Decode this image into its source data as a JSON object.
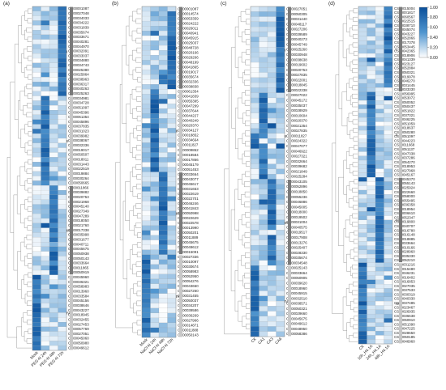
{
  "panels": [
    {
      "letter": "(a)",
      "columns": [
        "Mock",
        "PEG-N 24h",
        "PEG-N 48h",
        "PEG-N 72h"
      ],
      "group_labels": [
        "I",
        "II",
        "III",
        "IV"
      ],
      "genes": [
        "CS00001087",
        "CS00027048",
        "CS00034033",
        "CS00034222",
        "CS00031839",
        "CS00035674",
        "CS00033671",
        "CS00040281",
        "CS00044970",
        "CS00032091",
        "CS00033037",
        "CS00034880",
        "CS00034743",
        "CS00025380",
        "CS00025864",
        "CS00038963",
        "CS00036317",
        "CS00040263",
        "CS00025263",
        "CS00034981",
        "CS00034728",
        "CS00051097",
        "CS00045396",
        "CS00061354",
        "CS00045896",
        "CS00037835",
        "CS00031023",
        "CS00039982",
        "CS00038067",
        "CS00032336",
        "CS00019017",
        "CS00050507",
        "CS00018011",
        "CS00031443",
        "CS00022519",
        "CS00019884",
        "CS00030264",
        "CS00050665",
        "CS00011866",
        "CS00039882",
        "CS00020753",
        "CS00021968",
        "CS00045140",
        "CS00027349",
        "CS00047289",
        "CS00018050",
        "CS00021760",
        "CS00017338",
        "CS00035998",
        "CS00031677",
        "CS00040711",
        "CS00045675",
        "CS00050938",
        "CS00050143",
        "CS00033664",
        "CS00011865",
        "CS00050919",
        "CS00045960",
        "CS00036321",
        "CS00058983",
        "CS00013960",
        "CS00033584",
        "CS00045156",
        "CS00038646",
        "CS00043227",
        "CS00018945",
        "CS00032455",
        "CS00027453",
        "CS00057769",
        "CS00027051",
        "CS00045060",
        "CS00050980",
        "CS00049612"
      ]
    },
    {
      "letter": "(b)",
      "columns": [
        "Mock",
        "NaCl-N 24h",
        "NaCl-N 48h",
        "NaCl-N 72h"
      ],
      "group_labels": [
        "I",
        "II",
        "III",
        "IV"
      ],
      "genes": [
        "CS00001087",
        "CS00014574",
        "CS00053359",
        "CS00024222",
        "CS00026011",
        "CS00040941",
        "CS00045915",
        "CS00025037",
        "CS00048728",
        "CS00020166",
        "CS00029266",
        "CS00048199",
        "CS00041865",
        "CS00019017",
        "CS00035674",
        "CS00032336",
        "CS00038838",
        "CS00061354",
        "CS00041839",
        "CS00055395",
        "CS00047299",
        "CS00037644",
        "CS00044227",
        "CS00040249",
        "CS00020370",
        "CS00034127",
        "CS00018852",
        "CS00034664",
        "CS00011827",
        "CS00009862",
        "CS00018584",
        "CS00017866",
        "CS00045179",
        "CS00051453",
        "CS00033664",
        "CS00043077",
        "CS00045617",
        "CS00031653",
        "CS00022619",
        "CS00022701",
        "CS00046246",
        "CS00041843",
        "CS00050998",
        "CS00022629",
        "CS00022578",
        "CS00013990",
        "CS00050201",
        "CS00011889",
        "CS00045675",
        "CS00049612",
        "CS00015091",
        "CS00027336",
        "CS00010097",
        "CS00030674",
        "CS00058983",
        "CS00052950",
        "CS00054276",
        "CS00043650",
        "CS00027260",
        "CS00031455",
        "CS00050037",
        "CS00034207",
        "CS00039586",
        "CS00036269",
        "CS00027966",
        "CS00014871",
        "CS00011888",
        "CS00050143"
      ]
    },
    {
      "letter": "(c)",
      "columns": [
        "CK",
        "CA1",
        "CA3",
        "CA6"
      ],
      "group_labels": [
        "I",
        "II",
        "III",
        "IV"
      ],
      "genes": [
        "CS00027051",
        "CS00050305",
        "CS00031440",
        "CS00048117",
        "CS00027206",
        "CS00039589",
        "CS00040273",
        "CS00045749",
        "CS00025260",
        "CS00030948",
        "CS00038638",
        "CS00019602",
        "CS00020753",
        "CS00027835",
        "CS00022001",
        "CS00018845",
        "CS00022338",
        "CS00027022",
        "CS00045172",
        "CS00035037",
        "CS00028929",
        "CS00010604",
        "CS00020370",
        "CS00021354",
        "CS00027835",
        "CS00011827",
        "CS00024322",
        "CS00047077",
        "CS00046922",
        "CS00027321",
        "CS00032664",
        "CS00039682",
        "CS00021849",
        "CS00025284",
        "CS00043105",
        "CS00052896",
        "CS00018850",
        "CS00055236",
        "CS00046886",
        "CS00045005",
        "CS00018000",
        "CS00019502",
        "CS00031004",
        "CS00040575",
        "CS00019517",
        "CS00017908",
        "CS00013276",
        "CS00025407",
        "CS00028330",
        "CS00035674",
        "CS00034548",
        "CS00025143",
        "CS00033664",
        "CS00050905",
        "CS00039620",
        "CS00018960",
        "CS00045915",
        "CS00032510",
        "CS00038571",
        "CS00050321",
        "CS00029660",
        "CS00045675",
        "CS00049612",
        "CS00048950",
        "CS00058386"
      ]
    },
    {
      "letter": "(d)",
      "columns": [
        "CK",
        "10h_H4.1A",
        "24h_H4.1A",
        "48h_H4.1A"
      ],
      "group_labels": [
        "I",
        "II",
        "III",
        "IV"
      ],
      "genes": [
        "CS00015004",
        "CS00001817",
        "CS00060567",
        "CS00022515",
        "CS00038710",
        "CS00045074",
        "CS00043227",
        "CS00052866",
        "CS00017378",
        "CS00053445",
        "CS00042365",
        "CS00018906",
        "CS00041339",
        "CS00023127",
        "CS00052884",
        "CS00050321",
        "CS00019978",
        "CS00046270",
        "CS00031445",
        "CS00033330",
        "CS00056995",
        "CS00053072",
        "CS00050052",
        "CS00050437",
        "CS00051822",
        "CS00037321",
        "CS00046225",
        "CS00051059",
        "CS00018637",
        "CS00050280",
        "CS00051097",
        "CS00044223",
        "CS00011668",
        "CS00051137",
        "CS00047338",
        "CS00037286",
        "CS00054270",
        "CS00018953",
        "CS00027968",
        "CS00045167",
        "CS00045370",
        "CS00055143",
        "CS00025924",
        "CS00022660",
        "CS00058000",
        "CS00055495",
        "CS00036358",
        "CS00018954",
        "CS00006610",
        "CS00052347",
        "CS00019800",
        "CS00040707",
        "CS00016780",
        "CS00016148",
        "CS00018885",
        "CS00033664",
        "CS00010166",
        "CS00028960",
        "CS00035330",
        "CS00052210",
        "CS00031216",
        "CS00015480",
        "CS00046231",
        "CS00016402",
        "CS00016853",
        "CS00027035",
        "CS00037533",
        "CS00030319",
        "CS00040330",
        "CS00037485",
        "CS00023467",
        "CS00026935",
        "CS00036638",
        "CS00050910",
        "CS00051390",
        "CS00047225",
        "CS00028650",
        "CS00050185",
        "CS00046960"
      ]
    }
  ],
  "legend": {
    "ticks": [
      "1.00",
      "0.80",
      "0.60",
      "0.40",
      "0.20",
      "0.00"
    ],
    "color_high": "#0a4f9a",
    "color_low": "#ffffff"
  }
}
